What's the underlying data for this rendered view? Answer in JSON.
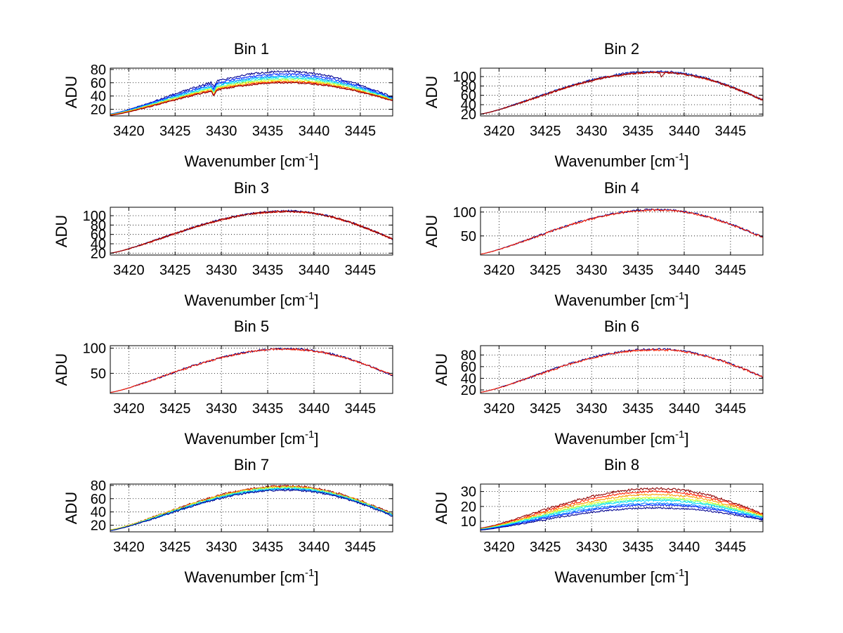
{
  "figure": {
    "background": "#ffffff",
    "axis_color": "#000000",
    "grid_color": "#000000"
  },
  "chart_data": [
    {
      "type": "line",
      "title": "Bin 1",
      "xlabel": "Wavenumber [cm",
      "xlabel_sup": "-1",
      "xlabel_suffix": "]",
      "ylabel": "ADU",
      "xlim": [
        3418,
        3448.5
      ],
      "ylim": [
        10,
        82
      ],
      "xticks": [
        3420,
        3425,
        3430,
        3435,
        3440,
        3445
      ],
      "yticks": [
        20,
        40,
        60,
        80
      ],
      "grid": true,
      "dip": {
        "x": 3429.2,
        "depth": 8,
        "series": "all"
      },
      "series": [
        {
          "name": "trace 1",
          "color": "#00008f",
          "peak": 77,
          "start": 13,
          "end": 38
        },
        {
          "name": "trace 2",
          "color": "#0020ff",
          "peak": 73,
          "start": 13,
          "end": 37
        },
        {
          "name": "trace 3",
          "color": "#0080ff",
          "peak": 70,
          "start": 13,
          "end": 36
        },
        {
          "name": "trace 4",
          "color": "#00dfff",
          "peak": 68,
          "start": 12,
          "end": 35
        },
        {
          "name": "trace 5",
          "color": "#60ff9f",
          "peak": 66,
          "start": 12,
          "end": 35
        },
        {
          "name": "trace 6",
          "color": "#dfff20",
          "peak": 64,
          "start": 12,
          "end": 34
        },
        {
          "name": "trace 7",
          "color": "#ff9f00",
          "peak": 62,
          "start": 12,
          "end": 34
        },
        {
          "name": "trace 8",
          "color": "#ff2000",
          "peak": 61,
          "start": 11,
          "end": 33
        },
        {
          "name": "trace 9",
          "color": "#8f0000",
          "peak": 60,
          "start": 11,
          "end": 33
        }
      ]
    },
    {
      "type": "line",
      "title": "Bin 2",
      "xlabel": "Wavenumber [cm",
      "xlabel_sup": "-1",
      "xlabel_suffix": "]",
      "ylabel": "ADU",
      "xlim": [
        3418,
        3448.5
      ],
      "ylim": [
        16,
        118
      ],
      "xticks": [
        3420,
        3425,
        3430,
        3435,
        3440,
        3445
      ],
      "yticks": [
        20,
        40,
        60,
        80,
        100
      ],
      "grid": true,
      "dip": {
        "x": 3437.6,
        "depth": 10,
        "series": "last"
      },
      "series": [
        {
          "name": "trace 1",
          "color": "#00008f",
          "peak": 111,
          "start": 20,
          "end": 50
        },
        {
          "name": "trace 2",
          "color": "#0060ff",
          "peak": 110,
          "start": 20,
          "end": 50
        },
        {
          "name": "trace 3",
          "color": "#ff2000",
          "peak": 109,
          "start": 20,
          "end": 50
        },
        {
          "name": "trace 4",
          "color": "#8f0000",
          "peak": 109,
          "start": 20,
          "end": 50
        }
      ]
    },
    {
      "type": "line",
      "title": "Bin 3",
      "xlabel": "Wavenumber [cm",
      "xlabel_sup": "-1",
      "xlabel_suffix": "]",
      "ylabel": "ADU",
      "xlim": [
        3418,
        3448.5
      ],
      "ylim": [
        16,
        118
      ],
      "xticks": [
        3420,
        3425,
        3430,
        3435,
        3440,
        3445
      ],
      "yticks": [
        20,
        40,
        60,
        80,
        100
      ],
      "grid": true,
      "series": [
        {
          "name": "trace 1",
          "color": "#00008f",
          "peak": 110,
          "start": 20,
          "end": 50
        },
        {
          "name": "trace 2",
          "color": "#ff2000",
          "peak": 109,
          "start": 20,
          "end": 50
        },
        {
          "name": "trace 3",
          "color": "#8f0000",
          "peak": 109,
          "start": 20,
          "end": 50
        }
      ]
    },
    {
      "type": "line",
      "title": "Bin 4",
      "xlabel": "Wavenumber [cm",
      "xlabel_sup": "-1",
      "xlabel_suffix": "]",
      "ylabel": "ADU",
      "xlim": [
        3418,
        3448.5
      ],
      "ylim": [
        10,
        110
      ],
      "xticks": [
        3420,
        3425,
        3430,
        3435,
        3440,
        3445
      ],
      "yticks": [
        50,
        100
      ],
      "grid": true,
      "series": [
        {
          "name": "trace 1",
          "color": "#00008f",
          "peak": 105,
          "start": 12,
          "end": 47
        },
        {
          "name": "trace 2",
          "color": "#ff2000",
          "peak": 104,
          "start": 12,
          "end": 47
        }
      ]
    },
    {
      "type": "line",
      "title": "Bin 5",
      "xlabel": "Wavenumber [cm",
      "xlabel_sup": "-1",
      "xlabel_suffix": "]",
      "ylabel": "ADU",
      "xlim": [
        3418,
        3448.5
      ],
      "ylim": [
        10,
        105
      ],
      "xticks": [
        3420,
        3425,
        3430,
        3435,
        3440,
        3445
      ],
      "yticks": [
        50,
        100
      ],
      "grid": true,
      "series": [
        {
          "name": "trace 1",
          "color": "#00008f",
          "peak": 99,
          "start": 12,
          "end": 46
        },
        {
          "name": "trace 2",
          "color": "#ff2000",
          "peak": 98,
          "start": 12,
          "end": 46
        }
      ]
    },
    {
      "type": "line",
      "title": "Bin 6",
      "xlabel": "Wavenumber [cm",
      "xlabel_sup": "-1",
      "xlabel_suffix": "]",
      "ylabel": "ADU",
      "xlim": [
        3418,
        3448.5
      ],
      "ylim": [
        14,
        96
      ],
      "xticks": [
        3420,
        3425,
        3430,
        3435,
        3440,
        3445
      ],
      "yticks": [
        20,
        40,
        60,
        80
      ],
      "grid": true,
      "series": [
        {
          "name": "trace 1",
          "color": "#00008f",
          "peak": 90,
          "start": 16,
          "end": 42
        },
        {
          "name": "trace 2",
          "color": "#ff2000",
          "peak": 89,
          "start": 16,
          "end": 42
        }
      ]
    },
    {
      "type": "line",
      "title": "Bin 7",
      "xlabel": "Wavenumber [cm",
      "xlabel_sup": "-1",
      "xlabel_suffix": "]",
      "ylabel": "ADU",
      "xlim": [
        3418,
        3448.5
      ],
      "ylim": [
        10,
        82
      ],
      "xticks": [
        3420,
        3425,
        3430,
        3435,
        3440,
        3445
      ],
      "yticks": [
        20,
        40,
        60,
        80
      ],
      "grid": true,
      "series": [
        {
          "name": "trace 1",
          "color": "#8f0000",
          "peak": 79,
          "start": 13,
          "end": 37
        },
        {
          "name": "trace 2",
          "color": "#ff6000",
          "peak": 78,
          "start": 13,
          "end": 36
        },
        {
          "name": "trace 3",
          "color": "#dfff20",
          "peak": 77,
          "start": 13,
          "end": 36
        },
        {
          "name": "trace 4",
          "color": "#60ff9f",
          "peak": 76,
          "start": 12,
          "end": 35
        },
        {
          "name": "trace 5",
          "color": "#00dfff",
          "peak": 75,
          "start": 12,
          "end": 35
        },
        {
          "name": "trace 6",
          "color": "#0080ff",
          "peak": 74,
          "start": 12,
          "end": 35
        },
        {
          "name": "trace 7",
          "color": "#00008f",
          "peak": 73,
          "start": 12,
          "end": 34
        }
      ]
    },
    {
      "type": "line",
      "title": "Bin 8",
      "xlabel": "Wavenumber [cm",
      "xlabel_sup": "-1",
      "xlabel_suffix": "]",
      "ylabel": "ADU",
      "xlim": [
        3418,
        3448.5
      ],
      "ylim": [
        3,
        35
      ],
      "xticks": [
        3420,
        3425,
        3430,
        3435,
        3440,
        3445
      ],
      "yticks": [
        10,
        20,
        30
      ],
      "grid": true,
      "series": [
        {
          "name": "trace 1",
          "color": "#8f0000",
          "peak": 32,
          "start": 5.5,
          "end": 15
        },
        {
          "name": "trace 2",
          "color": "#ff2000",
          "peak": 30,
          "start": 5.2,
          "end": 14.5
        },
        {
          "name": "trace 3",
          "color": "#ff9f00",
          "peak": 28,
          "start": 5,
          "end": 14
        },
        {
          "name": "trace 4",
          "color": "#dfff20",
          "peak": 26,
          "start": 5,
          "end": 13.5
        },
        {
          "name": "trace 5",
          "color": "#60ff9f",
          "peak": 25,
          "start": 4.8,
          "end": 13
        },
        {
          "name": "trace 6",
          "color": "#00dfff",
          "peak": 24,
          "start": 4.6,
          "end": 12.5
        },
        {
          "name": "trace 7",
          "color": "#0080ff",
          "peak": 22,
          "start": 4.5,
          "end": 12
        },
        {
          "name": "trace 8",
          "color": "#0020ff",
          "peak": 21,
          "start": 4.3,
          "end": 11.5
        },
        {
          "name": "trace 9",
          "color": "#00008f",
          "peak": 19,
          "start": 4.2,
          "end": 11
        }
      ]
    }
  ]
}
